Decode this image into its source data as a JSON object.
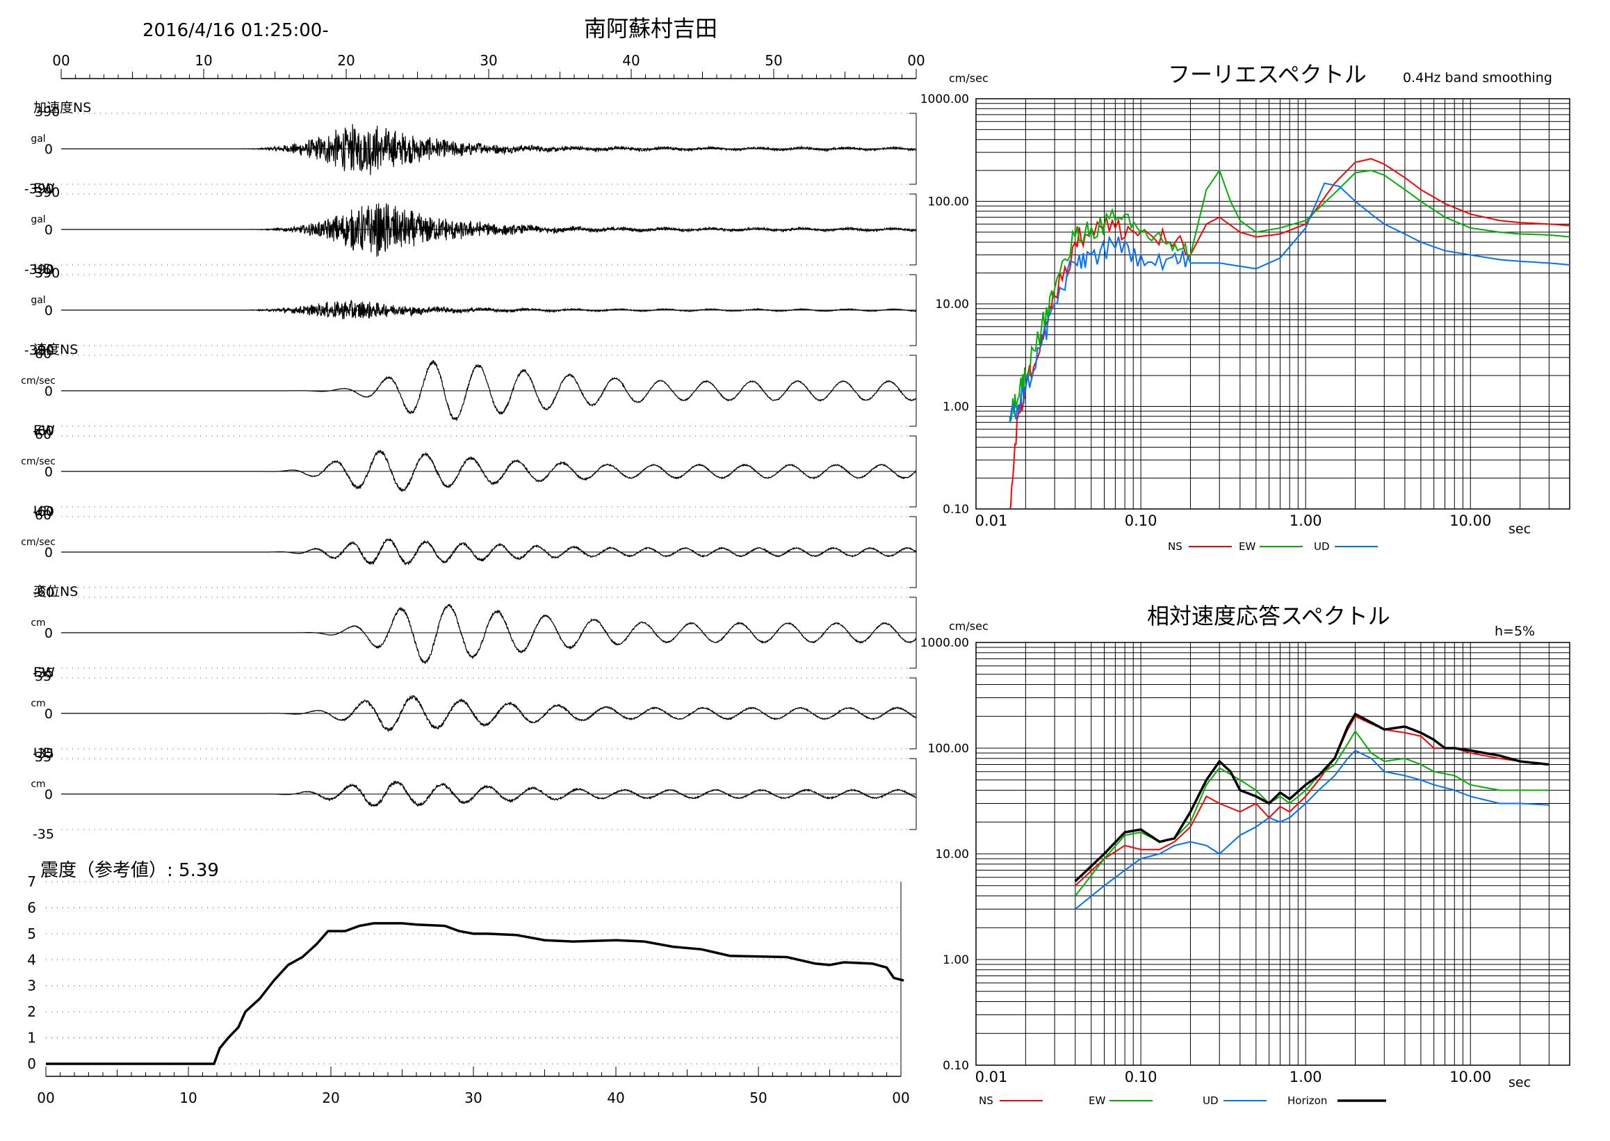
{
  "header": {
    "datetime": "2016/4/16 01:25:00-",
    "station": "南阿蘇村吉田",
    "time_ticks": [
      "00",
      "10",
      "20",
      "30",
      "40",
      "50",
      "00"
    ]
  },
  "waveforms": {
    "channels": [
      {
        "group": "加速度",
        "comp": "NS",
        "label": "加速度NS",
        "unit": "gal",
        "max": 390,
        "ticks": [
          "390",
          "0",
          "-390"
        ],
        "t_start": 12,
        "t_end": 60,
        "t_peak": 22,
        "peak_amp": 0.9,
        "envelope": "burst",
        "period": 0.45
      },
      {
        "group": "加速度",
        "comp": "EW",
        "label": "EW",
        "unit": "gal",
        "max": 390,
        "ticks": [
          "390",
          "0",
          "-390"
        ],
        "t_start": 12,
        "t_end": 60,
        "t_peak": 23,
        "peak_amp": 0.95,
        "envelope": "burst",
        "period": 0.45
      },
      {
        "group": "加速度",
        "comp": "UD",
        "label": "UD",
        "unit": "gal",
        "max": 390,
        "ticks": [
          "390",
          "0",
          "-390"
        ],
        "t_start": 12,
        "t_end": 60,
        "t_peak": 21,
        "peak_amp": 0.35,
        "envelope": "burst",
        "period": 0.4
      },
      {
        "group": "速度",
        "comp": "NS",
        "label": "速度NS",
        "unit": "cm/sec",
        "max": 60,
        "ticks": [
          "60",
          "0",
          "-60"
        ],
        "t_start": 14,
        "t_end": 60,
        "t_peak": 27,
        "peak_amp": 0.95,
        "envelope": "wave",
        "period": 3.2
      },
      {
        "group": "速度",
        "comp": "EW",
        "label": "EW",
        "unit": "cm/sec",
        "max": 60,
        "ticks": [
          "60",
          "0",
          "-60"
        ],
        "t_start": 14,
        "t_end": 60,
        "t_peak": 23,
        "peak_amp": 0.65,
        "envelope": "wave",
        "period": 3.2
      },
      {
        "group": "速度",
        "comp": "UD",
        "label": "UD",
        "unit": "cm/sec",
        "max": 60,
        "ticks": [
          "60",
          "0",
          "-60"
        ],
        "t_start": 14,
        "t_end": 60,
        "t_peak": 23,
        "peak_amp": 0.4,
        "envelope": "wave",
        "period": 2.6
      },
      {
        "group": "変位",
        "comp": "NS",
        "label": "変位NS",
        "unit": "cm",
        "max": 35,
        "ticks": [
          "",
          "0",
          "-35"
        ],
        "t_start": 16,
        "t_end": 60,
        "t_peak": 26,
        "peak_amp": 0.95,
        "envelope": "wave",
        "period": 3.4
      },
      {
        "group": "変位",
        "comp": "EW",
        "label": "EW",
        "unit": "cm",
        "max": 35,
        "ticks": [
          "35",
          "0",
          "-35"
        ],
        "t_start": 14,
        "t_end": 60,
        "t_peak": 24,
        "peak_amp": 0.55,
        "envelope": "wave",
        "period": 3.4
      },
      {
        "group": "変位",
        "comp": "UD",
        "label": "UD",
        "unit": "cm",
        "max": 35,
        "ticks": [
          "35",
          "0",
          "-35"
        ],
        "t_start": 14,
        "t_end": 60,
        "t_peak": 23,
        "peak_amp": 0.4,
        "envelope": "wave",
        "period": 3.2
      }
    ]
  },
  "intensity": {
    "title": "震度（参考値）: 5.39",
    "yticks": [
      "0",
      "1",
      "2",
      "3",
      "4",
      "5",
      "6",
      "7"
    ],
    "xticks": [
      "00",
      "10",
      "20",
      "30",
      "40",
      "50",
      "00"
    ],
    "ylim": [
      0,
      7
    ],
    "points": [
      [
        0,
        0
      ],
      [
        11.8,
        0
      ],
      [
        12.2,
        0.6
      ],
      [
        12.8,
        1.0
      ],
      [
        13.5,
        1.4
      ],
      [
        14,
        2.0
      ],
      [
        15,
        2.5
      ],
      [
        16,
        3.2
      ],
      [
        17,
        3.8
      ],
      [
        18,
        4.1
      ],
      [
        19,
        4.6
      ],
      [
        19.8,
        5.1
      ],
      [
        21,
        5.1
      ],
      [
        22,
        5.3
      ],
      [
        23,
        5.4
      ],
      [
        25,
        5.4
      ],
      [
        26,
        5.35
      ],
      [
        28,
        5.3
      ],
      [
        29,
        5.1
      ],
      [
        30,
        5.0
      ],
      [
        31,
        5.0
      ],
      [
        33,
        4.95
      ],
      [
        35,
        4.75
      ],
      [
        37,
        4.7
      ],
      [
        40,
        4.75
      ],
      [
        42,
        4.7
      ],
      [
        44,
        4.5
      ],
      [
        46,
        4.4
      ],
      [
        48,
        4.15
      ],
      [
        52,
        4.1
      ],
      [
        54,
        3.85
      ],
      [
        55,
        3.8
      ],
      [
        56,
        3.9
      ],
      [
        58,
        3.85
      ],
      [
        59,
        3.7
      ],
      [
        59.5,
        3.3
      ],
      [
        60.5,
        3.2
      ]
    ]
  },
  "chart_data": [
    {
      "type": "line",
      "title": "フーリエスペクトル",
      "subtitle": "0.4Hz band smoothing",
      "ylabel": "cm/sec",
      "xlabel": "sec",
      "log_x": true,
      "log_y": true,
      "xlim": [
        0.01,
        40
      ],
      "ylim": [
        0.1,
        1000
      ],
      "xtick_labels": [
        "0.01",
        "0.10",
        "1.00",
        "10.00"
      ],
      "ytick_labels": [
        "0.10",
        "1.00",
        "10.00",
        "100.00",
        "1000.00"
      ],
      "legend": [
        "NS",
        "EW",
        "UD"
      ],
      "series": [
        {
          "name": "NS",
          "color": "#ff0000",
          "x": [
            0.016,
            0.018,
            0.02,
            0.025,
            0.03,
            0.04,
            0.05,
            0.07,
            0.1,
            0.15,
            0.2,
            0.25,
            0.3,
            0.4,
            0.5,
            0.7,
            1.0,
            1.5,
            2.0,
            2.5,
            3,
            4,
            5,
            7,
            10,
            15,
            20,
            30,
            40
          ],
          "y": [
            0.1,
            0.8,
            1.5,
            5,
            12,
            40,
            55,
            55,
            50,
            40,
            30,
            60,
            70,
            50,
            45,
            48,
            60,
            150,
            240,
            260,
            230,
            170,
            130,
            95,
            75,
            65,
            62,
            60,
            58
          ]
        },
        {
          "name": "EW",
          "color": "#00b000",
          "x": [
            0.016,
            0.018,
            0.02,
            0.025,
            0.03,
            0.04,
            0.05,
            0.07,
            0.1,
            0.15,
            0.2,
            0.25,
            0.3,
            0.35,
            0.4,
            0.5,
            0.7,
            1.0,
            1.5,
            2.0,
            2.5,
            3,
            4,
            5,
            7,
            10,
            15,
            20,
            30,
            40
          ],
          "y": [
            0.8,
            1.2,
            2,
            6,
            14,
            45,
            55,
            65,
            50,
            40,
            30,
            130,
            200,
            100,
            65,
            50,
            55,
            65,
            120,
            190,
            200,
            180,
            130,
            100,
            70,
            55,
            50,
            48,
            47,
            45
          ]
        },
        {
          "name": "UD",
          "color": "#0070ff",
          "x": [
            0.016,
            0.018,
            0.02,
            0.025,
            0.03,
            0.04,
            0.05,
            0.07,
            0.1,
            0.15,
            0.2,
            0.3,
            0.5,
            0.7,
            1.0,
            1.3,
            1.6,
            2.0,
            2.5,
            3,
            4,
            5,
            7,
            10,
            15,
            20,
            30,
            40
          ],
          "y": [
            0.7,
            1.0,
            1.5,
            4,
            10,
            25,
            30,
            35,
            30,
            28,
            25,
            25,
            22,
            28,
            55,
            150,
            140,
            100,
            75,
            60,
            48,
            40,
            33,
            30,
            27,
            26,
            25,
            24
          ]
        }
      ]
    },
    {
      "type": "line",
      "title": "相対速度応答スペクトル",
      "subtitle": "h=5%",
      "ylabel": "cm/sec",
      "xlabel": "sec",
      "log_x": true,
      "log_y": true,
      "xlim": [
        0.01,
        40
      ],
      "ylim": [
        0.1,
        1000
      ],
      "xtick_labels": [
        "0.01",
        "0.10",
        "1.00",
        "10.00"
      ],
      "ytick_labels": [
        "0.10",
        "1.00",
        "10.00",
        "100.00",
        "1000.00"
      ],
      "legend": [
        "NS",
        "EW",
        "UD",
        "Horizon"
      ],
      "series": [
        {
          "name": "NS",
          "color": "#ff0000",
          "x": [
            0.04,
            0.06,
            0.08,
            0.1,
            0.13,
            0.16,
            0.2,
            0.25,
            0.3,
            0.4,
            0.5,
            0.6,
            0.7,
            0.8,
            1.0,
            1.2,
            1.5,
            1.8,
            2.0,
            2.5,
            3,
            4,
            5,
            6,
            8,
            10,
            15,
            20,
            30
          ],
          "y": [
            5,
            9,
            12,
            11,
            11,
            13,
            18,
            35,
            30,
            25,
            30,
            22,
            28,
            25,
            35,
            50,
            80,
            150,
            200,
            170,
            150,
            140,
            130,
            100,
            100,
            90,
            80,
            75,
            70
          ]
        },
        {
          "name": "EW",
          "color": "#00b000",
          "x": [
            0.04,
            0.06,
            0.08,
            0.1,
            0.13,
            0.16,
            0.2,
            0.25,
            0.3,
            0.4,
            0.5,
            0.6,
            0.7,
            0.8,
            1.0,
            1.2,
            1.5,
            1.8,
            2.0,
            2.5,
            3,
            4,
            5,
            6,
            8,
            10,
            15,
            20,
            30
          ],
          "y": [
            4,
            9,
            15,
            16,
            13,
            14,
            20,
            45,
            65,
            50,
            40,
            30,
            35,
            30,
            40,
            55,
            70,
            110,
            145,
            90,
            75,
            80,
            70,
            60,
            55,
            45,
            40,
            40,
            40
          ]
        },
        {
          "name": "UD",
          "color": "#0070ff",
          "x": [
            0.04,
            0.06,
            0.08,
            0.1,
            0.13,
            0.16,
            0.2,
            0.25,
            0.3,
            0.4,
            0.5,
            0.6,
            0.7,
            0.8,
            1.0,
            1.2,
            1.5,
            1.8,
            2.0,
            2.5,
            3,
            4,
            5,
            6,
            8,
            10,
            15,
            20,
            30
          ],
          "y": [
            3,
            5,
            7,
            9,
            10,
            12,
            13,
            12,
            10,
            15,
            18,
            22,
            20,
            22,
            30,
            40,
            55,
            80,
            95,
            80,
            60,
            55,
            50,
            45,
            40,
            35,
            30,
            30,
            29
          ]
        },
        {
          "name": "Horizon",
          "color": "#000000",
          "x": [
            0.04,
            0.06,
            0.08,
            0.1,
            0.13,
            0.16,
            0.2,
            0.25,
            0.3,
            0.35,
            0.4,
            0.5,
            0.6,
            0.7,
            0.8,
            1.0,
            1.2,
            1.5,
            1.8,
            2.0,
            2.5,
            3,
            4,
            5,
            6,
            7,
            8,
            10,
            15,
            20,
            30
          ],
          "y": [
            5.5,
            10,
            16,
            17,
            13,
            14,
            25,
            50,
            75,
            60,
            40,
            35,
            30,
            38,
            33,
            45,
            55,
            80,
            160,
            210,
            175,
            150,
            160,
            140,
            120,
            100,
            100,
            95,
            85,
            75,
            70
          ]
        }
      ]
    }
  ]
}
